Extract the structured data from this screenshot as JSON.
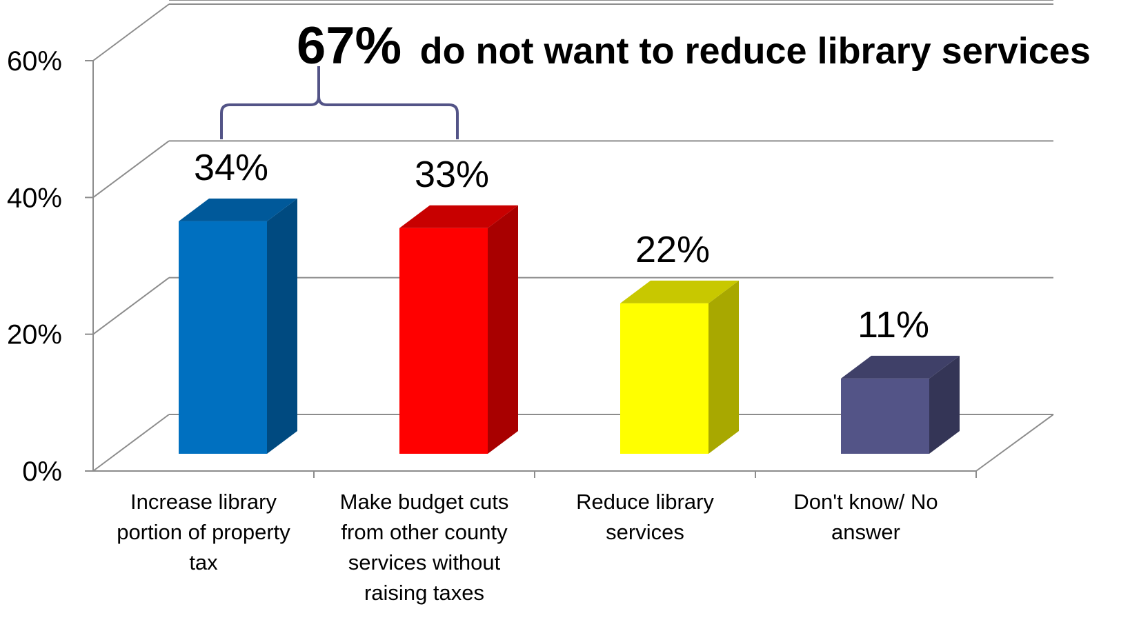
{
  "chart_data": {
    "type": "bar",
    "categories": [
      [
        "Increase library",
        "portion of property",
        "tax"
      ],
      [
        "Make budget cuts",
        "from other county",
        "services without",
        "raising taxes"
      ],
      [
        "Reduce library",
        "services"
      ],
      [
        "Don't know/ No",
        "answer"
      ]
    ],
    "values": [
      34,
      33,
      22,
      11
    ],
    "value_labels": [
      "34%",
      "33%",
      "22%",
      "11%"
    ],
    "ylim": [
      0,
      60
    ],
    "yticks": [
      {
        "value": 0,
        "label": "0%"
      },
      {
        "value": 20,
        "label": "20%"
      },
      {
        "value": 40,
        "label": "40%"
      },
      {
        "value": 60,
        "label": "60%"
      }
    ],
    "three_d": true,
    "grid": true,
    "legend": "none",
    "colors": {
      "bars": [
        {
          "front": "#0070C0",
          "side": "#004A80",
          "top": "#00599A"
        },
        {
          "front": "#FF0000",
          "side": "#A80000",
          "top": "#C80000"
        },
        {
          "front": "#FFFF00",
          "side": "#A8A800",
          "top": "#C8C800"
        },
        {
          "front": "#535487",
          "side": "#343556",
          "top": "#3F4068"
        }
      ],
      "grid": "#8C8C8C",
      "bracket": "#535487"
    },
    "annotation": {
      "highlight": "67%",
      "text": "do not want to reduce library services",
      "spans_categories": [
        0,
        1
      ]
    }
  }
}
